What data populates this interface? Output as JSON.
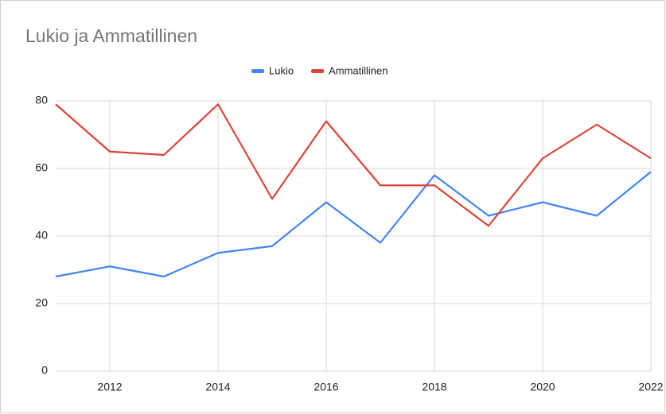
{
  "chart_data": {
    "type": "line",
    "title": "Lukio ja Ammatillinen",
    "x": [
      2011,
      2012,
      2013,
      2014,
      2015,
      2016,
      2017,
      2018,
      2019,
      2020,
      2021,
      2022
    ],
    "series": [
      {
        "name": "Lukio",
        "color": "#4285f4",
        "values": [
          28,
          31,
          28,
          35,
          37,
          50,
          38,
          58,
          46,
          50,
          46,
          59
        ]
      },
      {
        "name": "Ammatillinen",
        "color": "#db4437",
        "values": [
          79,
          65,
          64,
          79,
          51,
          74,
          55,
          55,
          43,
          63,
          73,
          63
        ]
      }
    ],
    "xlim": [
      2011,
      2022
    ],
    "xticks": [
      2012,
      2014,
      2016,
      2018,
      2020,
      2022
    ],
    "ylim": [
      0,
      80
    ],
    "yticks": [
      0,
      20,
      40,
      60,
      80
    ],
    "grid": true,
    "legend": "top"
  }
}
